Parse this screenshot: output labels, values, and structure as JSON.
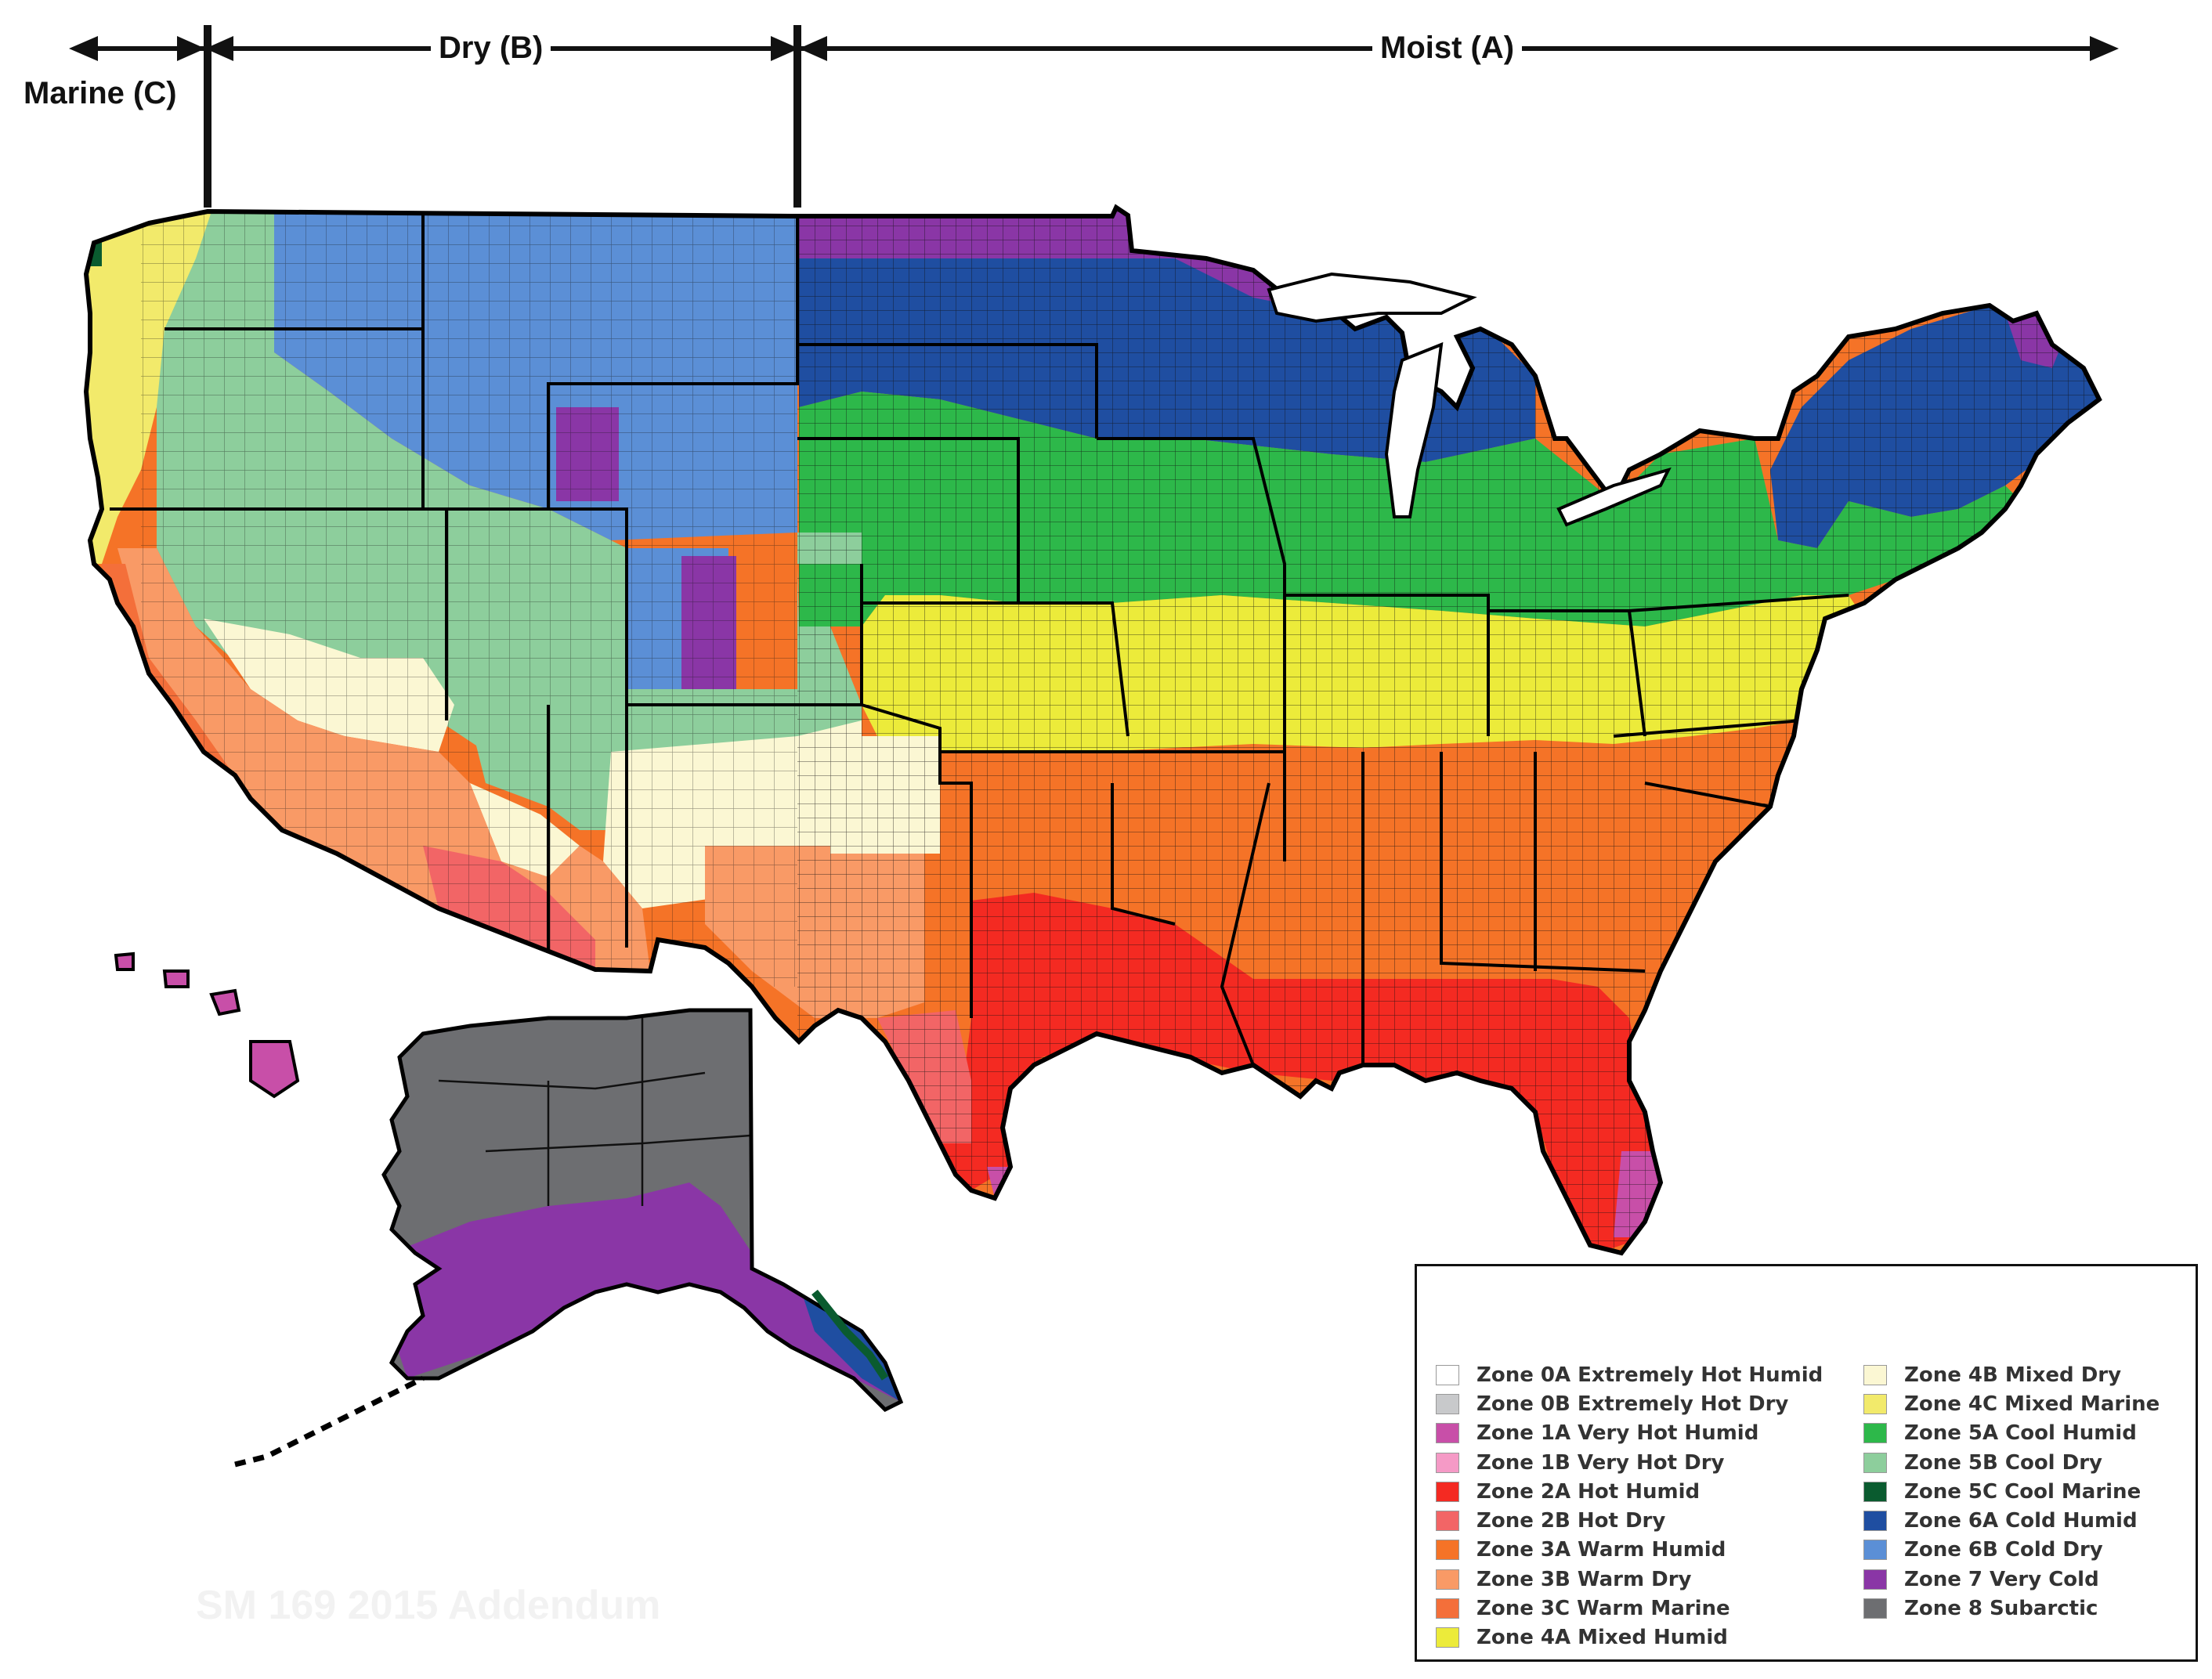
{
  "moisture_regimes": {
    "marine": "Marine (C)",
    "dry": "Dry (B)",
    "moist": "Moist (A)"
  },
  "watermark": "SM 169 2015 Addendum",
  "legend": {
    "items": [
      {
        "label": "Zone 0A Extremely Hot Humid",
        "color": "#ffffff"
      },
      {
        "label": "Zone 0B Extremely Hot Dry",
        "color": "#c8c9cb"
      },
      {
        "label": "Zone 1A Very Hot Humid",
        "color": "#c84fa8"
      },
      {
        "label": "Zone 1B Very Hot Dry",
        "color": "#f59ac6"
      },
      {
        "label": "Zone 2A Hot Humid",
        "color": "#f42a22"
      },
      {
        "label": "Zone 2B Hot Dry",
        "color": "#f26566"
      },
      {
        "label": "Zone 3A Warm Humid",
        "color": "#f57327"
      },
      {
        "label": "Zone 3B Warm Dry",
        "color": "#f99a66"
      },
      {
        "label": "Zone 3C Warm Marine",
        "color": "#f46f3a"
      },
      {
        "label": "Zone 4A Mixed Humid",
        "color": "#eceb3a"
      },
      {
        "label": "Zone 4B Mixed Dry",
        "color": "#fbf7d3"
      },
      {
        "label": "Zone 4C Mixed Marine",
        "color": "#f2ea6b"
      },
      {
        "label": "Zone 5A Cool Humid",
        "color": "#2db84a"
      },
      {
        "label": "Zone 5B Cool Dry",
        "color": "#8dce9c"
      },
      {
        "label": "Zone 5C Cool Marine",
        "color": "#0a5b2f"
      },
      {
        "label": "Zone 6A Cold Humid",
        "color": "#1f4ea1"
      },
      {
        "label": "Zone 6B Cold Dry",
        "color": "#5b8fd6"
      },
      {
        "label": "Zone 7 Very Cold",
        "color": "#8a36a6"
      },
      {
        "label": "Zone 8 Subarctic",
        "color": "#6d6e71"
      }
    ]
  }
}
